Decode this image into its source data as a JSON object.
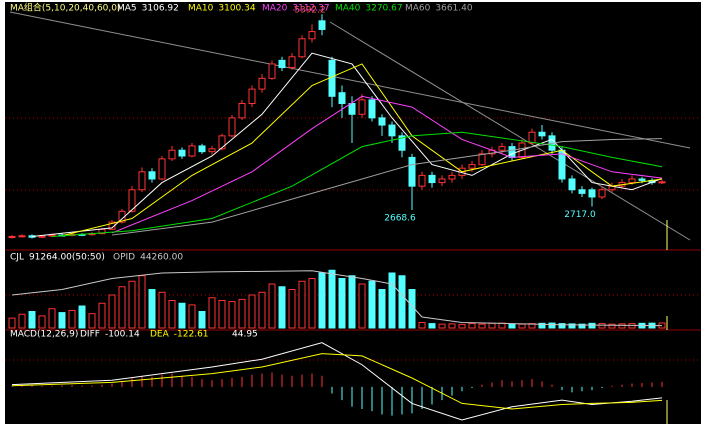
{
  "chart_data": [
    {
      "type": "candlestick",
      "title": "MA组合(5,10,20,40,60,0)",
      "title_color": "#ffff80",
      "up_color": "#ff3232",
      "down_color": "#54ffff",
      "ylim": [
        2140,
        5520
      ],
      "open": [
        2290,
        2300,
        2310,
        2290,
        2305,
        2320,
        2315,
        2330,
        2325,
        2340,
        2400,
        2500,
        2650,
        2950,
        3200,
        3100,
        3380,
        3500,
        3420,
        3560,
        3480,
        3520,
        3700,
        3950,
        4150,
        4350,
        4500,
        4750,
        4650,
        4800,
        5050,
        5300,
        4750,
        4300,
        4150,
        4000,
        4200,
        3950,
        3850,
        3700,
        3400,
        3000,
        3150,
        3050,
        3100,
        3150,
        3250,
        3300,
        3450,
        3500,
        3550,
        3400,
        3600,
        3750,
        3700,
        3500,
        3100,
        2950,
        2950,
        2850,
        2950,
        3000,
        3050,
        3100,
        3080,
        3050
      ],
      "high": [
        2320,
        2330,
        2330,
        2320,
        2340,
        2340,
        2350,
        2345,
        2360,
        2420,
        2530,
        2680,
        3000,
        3260,
        3250,
        3420,
        3560,
        3540,
        3600,
        3590,
        3560,
        3730,
        3990,
        4200,
        4400,
        4560,
        4750,
        4800,
        4850,
        5100,
        5250,
        5392.2,
        4800,
        4400,
        4250,
        4280,
        4250,
        4000,
        3900,
        3750,
        3450,
        3200,
        3200,
        3150,
        3200,
        3300,
        3350,
        3500,
        3550,
        3600,
        3600,
        3650,
        3800,
        3850,
        3750,
        3550,
        3150,
        3000,
        2980,
        3000,
        3050,
        3100,
        3150,
        3130,
        3110,
        3090
      ],
      "low": [
        2270,
        2285,
        2270,
        2275,
        2290,
        2300,
        2300,
        2305,
        2310,
        2330,
        2390,
        2480,
        2630,
        2920,
        3050,
        3080,
        3350,
        3380,
        3400,
        3450,
        3440,
        3500,
        3680,
        3920,
        4100,
        4300,
        4480,
        4600,
        4620,
        4780,
        5000,
        5100,
        4100,
        3950,
        3600,
        3950,
        3900,
        3700,
        3600,
        3400,
        2668.6,
        2950,
        2980,
        3000,
        3050,
        3100,
        3200,
        3280,
        3400,
        3450,
        3350,
        3380,
        3580,
        3650,
        3450,
        3050,
        2900,
        2850,
        2717.0,
        2820,
        2920,
        2970,
        3020,
        3040,
        3020,
        3030
      ],
      "close": [
        2300,
        2310,
        2290,
        2305,
        2320,
        2315,
        2330,
        2325,
        2340,
        2400,
        2500,
        2650,
        2950,
        3200,
        3100,
        3380,
        3500,
        3420,
        3560,
        3480,
        3520,
        3700,
        3950,
        4150,
        4350,
        4500,
        4700,
        4650,
        4800,
        5050,
        5150,
        5180,
        4250,
        4150,
        4000,
        4200,
        3950,
        3850,
        3700,
        3500,
        3000,
        3150,
        3050,
        3100,
        3150,
        3250,
        3300,
        3450,
        3500,
        3550,
        3400,
        3600,
        3750,
        3700,
        3500,
        3100,
        2950,
        2900,
        2850,
        2950,
        3000,
        3050,
        3100,
        3080,
        3050,
        3060
      ],
      "series": [
        {
          "name": "MA5",
          "color": "#ffffff",
          "x": [
            2,
            10,
            15,
            20,
            25,
            30,
            34,
            38,
            42,
            46,
            50,
            54,
            58,
            62,
            65
          ],
          "values": [
            2300,
            2420,
            3050,
            3420,
            4000,
            4850,
            4700,
            3950,
            3300,
            3150,
            3450,
            3650,
            3050,
            2950,
            3106.92
          ]
        },
        {
          "name": "MA10",
          "color": "#ffff00",
          "x": [
            5,
            12,
            18,
            24,
            30,
            35,
            40,
            45,
            50,
            55,
            60,
            65
          ],
          "values": [
            2310,
            2550,
            3150,
            3600,
            4400,
            4700,
            3700,
            3200,
            3350,
            3500,
            3000,
            3100.34
          ]
        },
        {
          "name": "MA20",
          "color": "#ff40ff",
          "x": [
            10,
            18,
            24,
            30,
            35,
            40,
            45,
            50,
            55,
            60,
            65
          ],
          "values": [
            2350,
            2800,
            3200,
            3800,
            4250,
            4100,
            3650,
            3400,
            3450,
            3200,
            3112.37
          ]
        },
        {
          "name": "MA40",
          "color": "#00e000",
          "x": [
            4,
            12,
            20,
            28,
            35,
            40,
            45,
            50,
            55,
            60,
            65
          ],
          "values": [
            2300,
            2380,
            2550,
            3000,
            3550,
            3700,
            3750,
            3650,
            3550,
            3400,
            3270.67
          ]
        },
        {
          "name": "MA60",
          "color": "#a0a0a0",
          "x": [
            10,
            20,
            30,
            40,
            50,
            55,
            60,
            65
          ],
          "values": [
            2320,
            2500,
            2900,
            3300,
            3500,
            3620,
            3650,
            3661.4
          ],
          "value_labels": [
            null,
            null,
            null,
            null,
            null,
            null,
            null,
            "3661.40"
          ]
        }
      ],
      "annotations": [
        {
          "candle": 31,
          "side": "high",
          "label": "5392.2",
          "color": "#ff5050"
        },
        {
          "candle": 40,
          "side": "low",
          "label": "2668.6",
          "color": "#54ffff"
        },
        {
          "candle": 58,
          "side": "low",
          "label": "2717.0",
          "color": "#54ffff"
        }
      ]
    },
    {
      "type": "volume",
      "ylim": [
        0,
        1200000
      ],
      "series": [
        {
          "name": "CJL",
          "color": "#ffffff",
          "values": [
            180000,
            250000,
            300000,
            220000,
            350000,
            280000,
            320000,
            400000,
            260000,
            450000,
            600000,
            750000,
            850000,
            950000,
            700000,
            650000,
            500000,
            450000,
            420000,
            300000,
            550000,
            500000,
            480000,
            520000,
            600000,
            650000,
            800000,
            750000,
            700000,
            850000,
            900000,
            1000000,
            1050000,
            900000,
            950000,
            800000,
            850000,
            700000,
            1000000,
            950000,
            700000,
            100000,
            80000,
            70000,
            75000,
            65000,
            80000,
            70000,
            85000,
            90000,
            75000,
            70000,
            80000,
            85000,
            90000,
            80000,
            75000,
            70000,
            85000,
            80000,
            70000,
            75000,
            80000,
            85000,
            88000,
            91264
          ],
          "value_labels": [
            null,
            null,
            null,
            null,
            null,
            null,
            null,
            null,
            null,
            null,
            null,
            null,
            null,
            null,
            null,
            null,
            null,
            null,
            null,
            null,
            null,
            null,
            null,
            null,
            null,
            null,
            null,
            null,
            null,
            null,
            null,
            null,
            null,
            null,
            null,
            null,
            null,
            null,
            null,
            null,
            null,
            null,
            null,
            null,
            null,
            null,
            null,
            null,
            null,
            null,
            null,
            null,
            null,
            null,
            null,
            null,
            null,
            null,
            null,
            null,
            null,
            null,
            null,
            null,
            null,
            "91264.00(50:50)"
          ]
        },
        {
          "name": "OPID",
          "color": "#c8c8c8",
          "x": [
            0,
            5,
            10,
            15,
            20,
            25,
            30,
            35,
            38,
            41,
            45,
            50,
            55,
            60,
            65
          ],
          "values": [
            600000,
            700000,
            900000,
            1000000,
            1020000,
            1030000,
            1040000,
            900000,
            800000,
            200000,
            100000,
            80000,
            60000,
            50000,
            44260
          ],
          "value_labels": [
            null,
            null,
            null,
            null,
            null,
            null,
            null,
            null,
            null,
            null,
            null,
            null,
            null,
            null,
            "44260.00"
          ]
        }
      ]
    },
    {
      "type": "macd",
      "title": "MACD(12,26,9)",
      "ylim": [
        -300,
        460
      ],
      "series": [
        {
          "name": "DIFF",
          "color": "#ffffff",
          "x": [
            0,
            10,
            20,
            25,
            31,
            35,
            40,
            45,
            50,
            55,
            58,
            62,
            65
          ],
          "values": [
            20,
            60,
            180,
            250,
            400,
            200,
            -150,
            -300,
            -180,
            -120,
            -160,
            -130,
            -100.14
          ]
        },
        {
          "name": "DEA",
          "color": "#ffff00",
          "x": [
            0,
            10,
            20,
            25,
            31,
            35,
            40,
            45,
            50,
            55,
            58,
            62,
            65
          ],
          "values": [
            10,
            40,
            120,
            180,
            300,
            280,
            80,
            -150,
            -200,
            -160,
            -150,
            -140,
            -122.61
          ]
        },
        {
          "color": "#ffffff",
          "values": [
            10,
            15,
            12,
            8,
            10,
            12,
            15,
            10,
            12,
            20,
            30,
            50,
            80,
            100,
            90,
            110,
            120,
            100,
            90,
            70,
            60,
            70,
            80,
            90,
            110,
            120,
            130,
            110,
            100,
            110,
            120,
            100,
            -60,
            -120,
            -180,
            -200,
            -220,
            -250,
            -260,
            -250,
            -240,
            -200,
            -160,
            -120,
            -80,
            -40,
            -10,
            20,
            40,
            60,
            50,
            60,
            70,
            50,
            20,
            -30,
            -50,
            -40,
            -30,
            -10,
            10,
            20,
            30,
            35,
            40,
            44.95
          ]
        }
      ]
    }
  ]
}
